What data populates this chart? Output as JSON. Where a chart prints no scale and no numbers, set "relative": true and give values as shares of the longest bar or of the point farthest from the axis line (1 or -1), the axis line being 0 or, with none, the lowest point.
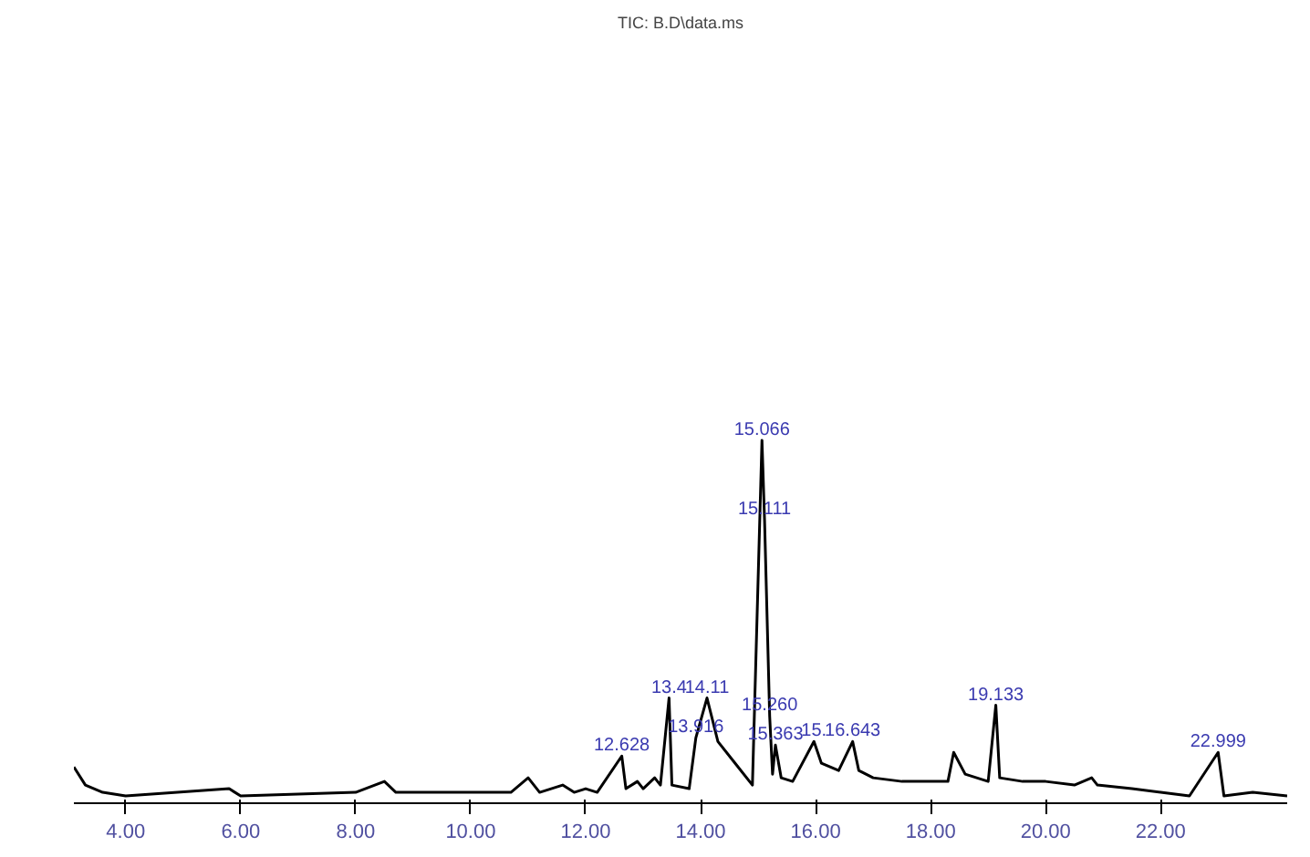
{
  "chart_data": {
    "type": "line",
    "title": "TIC: B.D\\data.ms",
    "relative": true,
    "x": [
      3.1,
      3.3,
      3.6,
      4,
      5.8,
      6,
      8,
      8.5,
      8.7,
      10,
      10.7,
      11.0,
      11.2,
      11.6,
      11.8,
      12.0,
      12.2,
      12.628,
      12.7,
      12.9,
      13.0,
      13.2,
      13.3,
      13.45,
      13.5,
      13.8,
      13.916,
      14.11,
      14.3,
      14.6,
      14.9,
      15.066,
      15.111,
      15.2,
      15.25,
      15.3,
      15.4,
      15.6,
      15.97,
      16.1,
      16.4,
      16.643,
      16.75,
      17.0,
      17.5,
      18.0,
      18.3,
      18.4,
      18.6,
      19.0,
      19.133,
      19.2,
      19.6,
      20.0,
      20.5,
      20.8,
      20.9,
      21.5,
      22.0,
      22.5,
      22.999,
      23.1,
      23.6,
      24.2
    ],
    "series": [
      {
        "color": "#000000",
        "values": [
          0.1,
          0.05,
          0.03,
          0.02,
          0.04,
          0.02,
          0.03,
          0.06,
          0.03,
          0.03,
          0.03,
          0.07,
          0.03,
          0.05,
          0.03,
          0.04,
          0.03,
          0.13,
          0.04,
          0.06,
          0.04,
          0.07,
          0.05,
          0.29,
          0.05,
          0.04,
          0.18,
          0.29,
          0.17,
          0.11,
          0.05,
          1.0,
          0.78,
          0.24,
          0.08,
          0.16,
          0.07,
          0.06,
          0.17,
          0.11,
          0.09,
          0.17,
          0.09,
          0.07,
          0.06,
          0.06,
          0.06,
          0.14,
          0.08,
          0.06,
          0.27,
          0.07,
          0.06,
          0.06,
          0.05,
          0.07,
          0.05,
          0.04,
          0.03,
          0.02,
          0.14,
          0.02,
          0.03,
          0.02
        ]
      }
    ],
    "xlim": [
      3.1,
      24.2
    ],
    "xticks": [
      {
        "value": 4,
        "label": "4.00"
      },
      {
        "value": 6,
        "label": "6.00"
      },
      {
        "value": 8,
        "label": "8.00"
      },
      {
        "value": 10,
        "label": "10.00"
      },
      {
        "value": 12,
        "label": "12.00"
      },
      {
        "value": 14,
        "label": "14.00"
      },
      {
        "value": 16,
        "label": "16.00"
      },
      {
        "value": 18,
        "label": "18.00"
      },
      {
        "value": 20,
        "label": "20.00"
      },
      {
        "value": 22,
        "label": "22.00"
      }
    ],
    "annotations": [
      {
        "text": "12.628",
        "x": 12.628,
        "y": 0.13
      },
      {
        "text": "13.4",
        "x": 13.45,
        "y": 0.29
      },
      {
        "text": "14.11",
        "x": 14.11,
        "y": 0.29
      },
      {
        "text": "13.916",
        "x": 13.916,
        "y": 0.18
      },
      {
        "text": "15.066",
        "x": 15.066,
        "y": 1.0
      },
      {
        "text": "15.111",
        "x": 15.111,
        "y": 0.78
      },
      {
        "text": "15.363",
        "x": 15.3,
        "y": 0.16
      },
      {
        "text": "15.260",
        "x": 15.2,
        "y": 0.24
      },
      {
        "text": "15.",
        "x": 15.97,
        "y": 0.17
      },
      {
        "text": "16.643",
        "x": 16.643,
        "y": 0.17
      },
      {
        "text": "19.133",
        "x": 19.133,
        "y": 0.27
      },
      {
        "text": "22.999",
        "x": 22.999,
        "y": 0.14
      }
    ]
  }
}
